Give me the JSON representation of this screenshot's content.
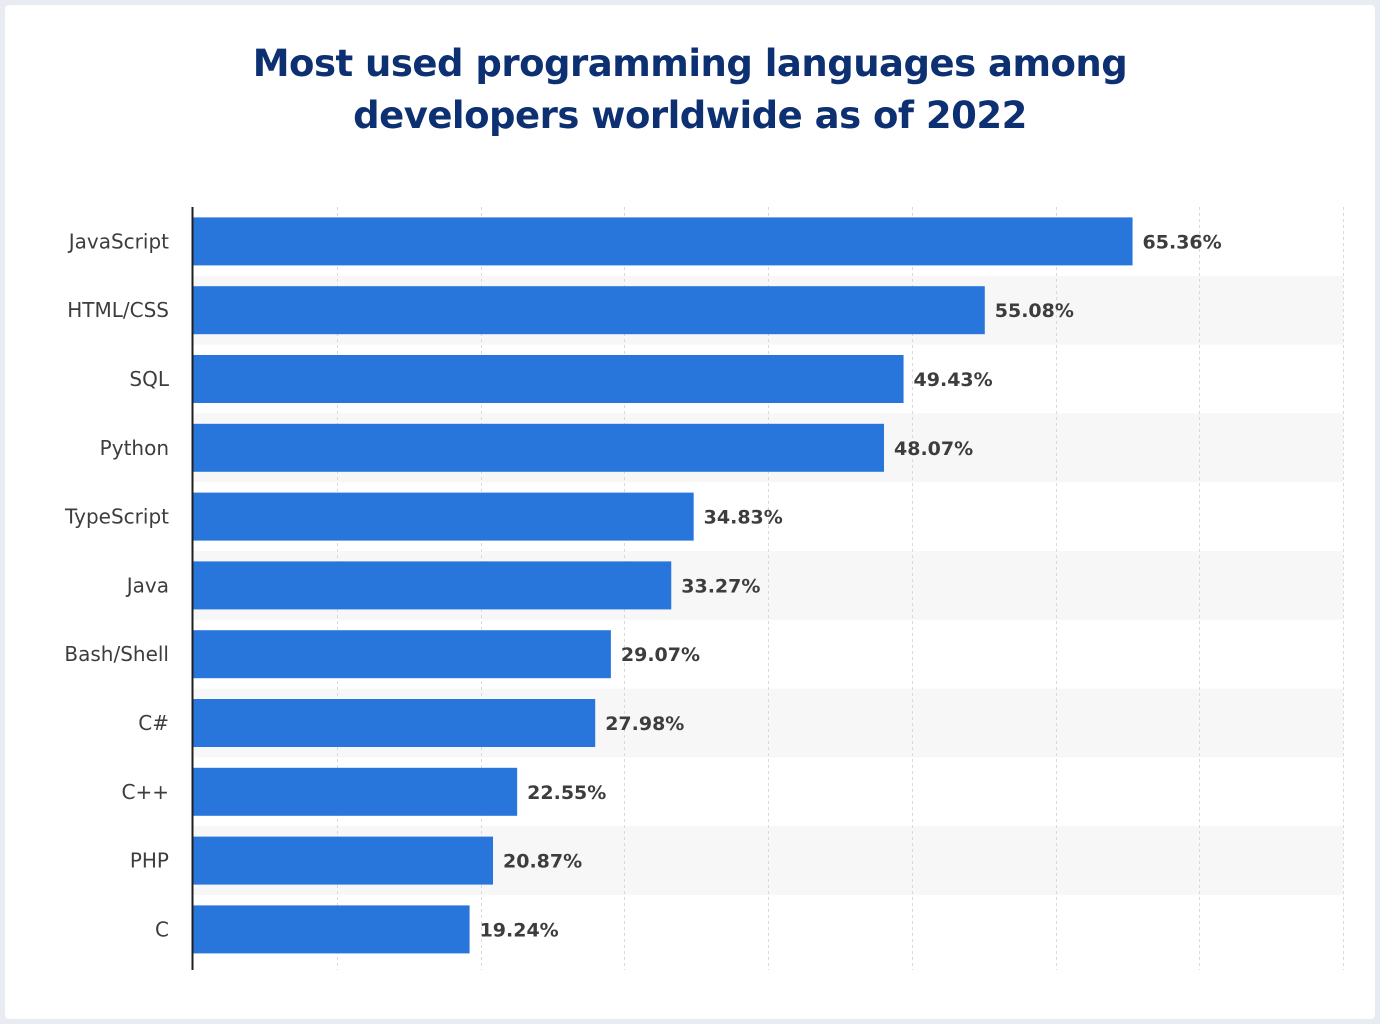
{
  "chart_data": {
    "type": "bar",
    "orientation": "horizontal",
    "title_lines": [
      "Most used programming languages among",
      "developers worldwide as of 2022"
    ],
    "categories": [
      "JavaScript",
      "HTML/CSS",
      "SQL",
      "Python",
      "TypeScript",
      "Java",
      "Bash/Shell",
      "C#",
      "C++",
      "PHP",
      "C"
    ],
    "values": [
      65.36,
      55.08,
      49.43,
      48.07,
      34.83,
      33.27,
      29.07,
      27.98,
      22.55,
      20.87,
      19.24
    ],
    "value_labels": [
      "65.36%",
      "55.08%",
      "49.43%",
      "48.07%",
      "34.83%",
      "33.27%",
      "29.07%",
      "27.98%",
      "22.55%",
      "20.87%",
      "19.24%"
    ],
    "xlim": [
      0,
      80
    ],
    "grid_step": 10,
    "grid": true,
    "unit": "%",
    "bar_color": "#2876dc",
    "band_color": "#f7f7f7",
    "axis_color": "#1f1f1f"
  }
}
